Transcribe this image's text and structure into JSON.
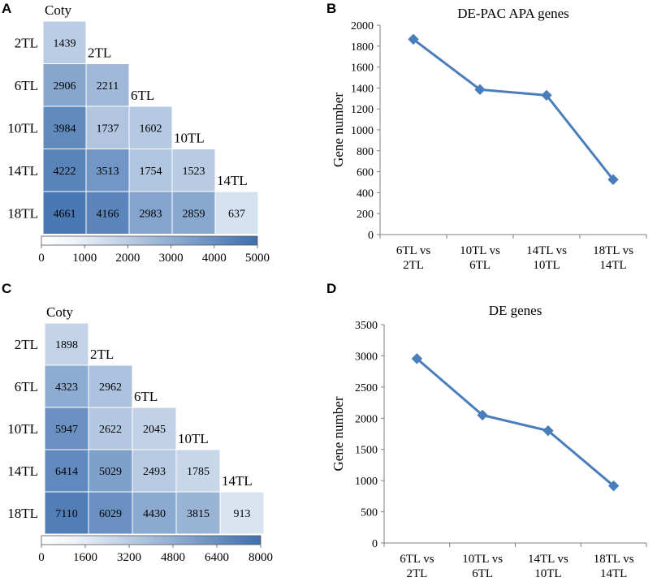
{
  "colors": {
    "heat_low": "#eef3fa",
    "heat_high": "#3d6fae",
    "line": "#4a7ebb",
    "marker": "#4a7ebb",
    "axis": "#7f7f7f"
  },
  "chart_data": [
    {
      "type": "heatmap",
      "panel": "A",
      "row_labels": [
        "2TL",
        "6TL",
        "10TL",
        "14TL",
        "18TL"
      ],
      "column_labels": [
        "Coty",
        "2TL",
        "6TL",
        "10TL",
        "14TL"
      ],
      "values": [
        [
          1439
        ],
        [
          2906,
          2211
        ],
        [
          3984,
          1737,
          1602
        ],
        [
          4222,
          3513,
          1754,
          1523
        ],
        [
          4661,
          4166,
          2983,
          2859,
          637
        ]
      ],
      "colorbar": {
        "min": 0,
        "max": 5000,
        "ticks": [
          "0",
          "1000",
          "2000",
          "3000",
          "4000",
          "5000"
        ]
      }
    },
    {
      "type": "line",
      "panel": "B",
      "title": "DE-PAC APA genes",
      "ylabel": "Gene number",
      "categories": [
        "6TL vs 2TL",
        "10TL vs 6TL",
        "14TL vs 10TL",
        "18TL vs 14TL"
      ],
      "category_lines": [
        [
          "6TL vs",
          "2TL"
        ],
        [
          "10TL vs",
          "6TL"
        ],
        [
          "14TL vs",
          "10TL"
        ],
        [
          "18TL vs",
          "14TL"
        ]
      ],
      "values": [
        1865,
        1385,
        1330,
        525
      ],
      "ylim": [
        0,
        2000
      ],
      "yticks": [
        0,
        200,
        400,
        600,
        800,
        1000,
        1200,
        1400,
        1600,
        1800,
        2000
      ]
    },
    {
      "type": "heatmap",
      "panel": "C",
      "row_labels": [
        "2TL",
        "6TL",
        "10TL",
        "14TL",
        "18TL"
      ],
      "column_labels": [
        "Coty",
        "2TL",
        "6TL",
        "10TL",
        "14TL"
      ],
      "values": [
        [
          1898
        ],
        [
          4323,
          2962
        ],
        [
          5947,
          2622,
          2045
        ],
        [
          6414,
          5029,
          2493,
          1785
        ],
        [
          7110,
          6029,
          4430,
          3815,
          913
        ]
      ],
      "colorbar": {
        "min": 0,
        "max": 8000,
        "ticks": [
          "0",
          "1600",
          "3200",
          "4800",
          "6400",
          "8000"
        ]
      }
    },
    {
      "type": "line",
      "panel": "D",
      "title": "DE genes",
      "ylabel": "Gene number",
      "categories": [
        "6TL vs 2TL",
        "10TL vs 6TL",
        "14TL vs 10TL",
        "18TL vs 14TL"
      ],
      "category_lines": [
        [
          "6TL vs",
          "2TL"
        ],
        [
          "10TL vs",
          "6TL"
        ],
        [
          "14TL vs",
          "10TL"
        ],
        [
          "18TL vs",
          "14TL"
        ]
      ],
      "values": [
        2955,
        2050,
        1800,
        915
      ],
      "ylim": [
        0,
        3500
      ],
      "yticks": [
        0,
        500,
        1000,
        1500,
        2000,
        2500,
        3000,
        3500
      ]
    }
  ]
}
